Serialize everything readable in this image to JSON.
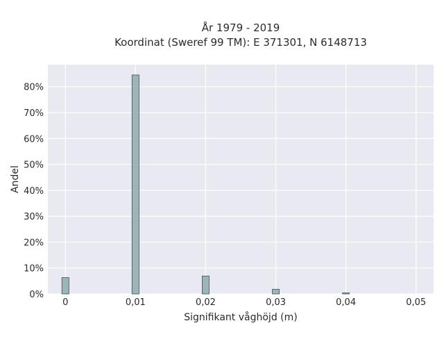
{
  "title_lines": [
    "År 1979 - 2019",
    "Koordinat (Sweref 99 TM): E 371301, N 6148713"
  ],
  "chart_data": {
    "type": "bar",
    "title": "År 1979 - 2019\nKoordinat (Sweref 99 TM): E 371301, N 6148713",
    "xlabel": "Signifikant våghöjd (m)",
    "ylabel": "Andel",
    "x": [
      0.0,
      0.01,
      0.02,
      0.03,
      0.04
    ],
    "values": [
      6.3,
      84.5,
      6.9,
      1.8,
      0.4
    ],
    "bin_width": 0.001,
    "xlim": [
      -0.0025,
      0.0525
    ],
    "ylim": [
      0,
      88.5
    ],
    "xticks": [
      {
        "value": 0.0,
        "label": "0"
      },
      {
        "value": 0.01,
        "label": "0,01"
      },
      {
        "value": 0.02,
        "label": "0,02"
      },
      {
        "value": 0.03,
        "label": "0,03"
      },
      {
        "value": 0.04,
        "label": "0,04"
      },
      {
        "value": 0.05,
        "label": "0,05"
      }
    ],
    "yticks": [
      {
        "value": 0,
        "label": "0%"
      },
      {
        "value": 10,
        "label": "10%"
      },
      {
        "value": 20,
        "label": "20%"
      },
      {
        "value": 30,
        "label": "30%"
      },
      {
        "value": 40,
        "label": "40%"
      },
      {
        "value": 50,
        "label": "50%"
      },
      {
        "value": 60,
        "label": "60%"
      },
      {
        "value": 70,
        "label": "70%"
      },
      {
        "value": 80,
        "label": "80%"
      }
    ],
    "grid": true,
    "colors": {
      "bar_fill": "#9db5b7",
      "bar_edge": "#3f4f4f",
      "plot_background": "#e9e9f1",
      "grid": "#ffffff"
    }
  }
}
